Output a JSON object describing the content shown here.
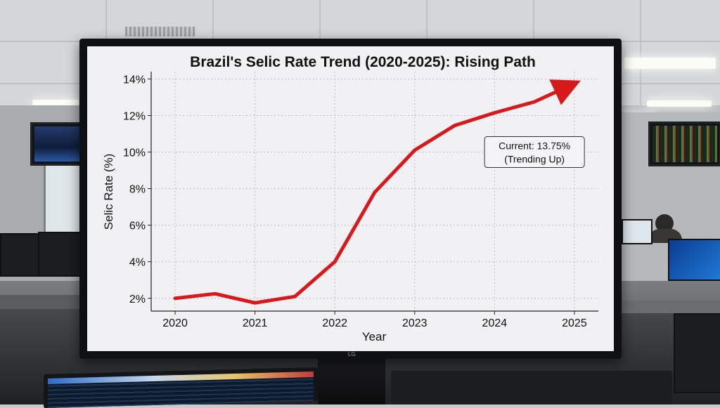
{
  "chart_data": {
    "type": "line",
    "title": "Brazil's Selic Rate Trend (2020-2025): Rising Path",
    "xlabel": "Year",
    "ylabel": "Selic Rate (%)",
    "x_ticks": [
      "2020",
      "2021",
      "2022",
      "2023",
      "2024",
      "2025"
    ],
    "y_ticks": [
      "2%",
      "4%",
      "6%",
      "8%",
      "10%",
      "12%",
      "14%"
    ],
    "xlim": [
      2019.7,
      2025.3
    ],
    "ylim": [
      1.3,
      14.4
    ],
    "grid": true,
    "series": [
      {
        "x": [
          2020.0,
          2020.5,
          2021.0,
          2021.5,
          2022.0,
          2022.5,
          2023.0,
          2023.5,
          2024.0,
          2024.5,
          2025.0
        ],
        "y": [
          2.0,
          2.25,
          1.75,
          2.1,
          4.0,
          7.8,
          10.1,
          11.45,
          12.15,
          12.75,
          13.75
        ],
        "color": "#d7191c",
        "arrow_end": true
      }
    ],
    "annotation": {
      "lines": [
        "Current: 13.75%",
        "(Trending Up)"
      ],
      "x": 2024.5,
      "y": 10.0
    }
  },
  "monitor_brand": "LG"
}
